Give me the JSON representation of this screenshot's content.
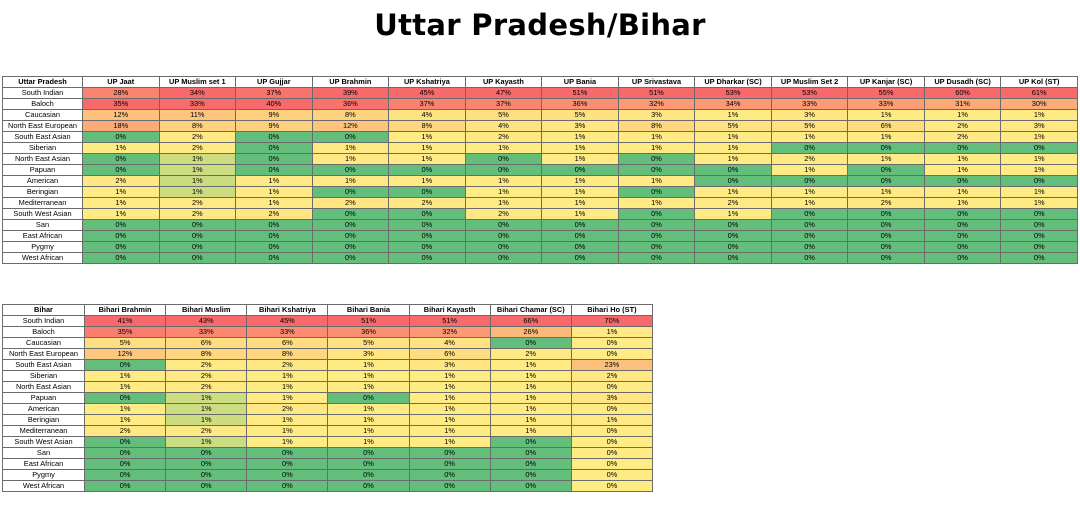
{
  "title": "Uttar Pradesh/Bihar",
  "colors": {
    "scale_low": "#63BE7B",
    "scale_mid": "#FFEB84",
    "scale_high": "#F8696B",
    "header_bg": "#FFFFFF",
    "border": "#6B6B6B"
  },
  "tables": [
    {
      "corner_label": "Uttar Pradesh",
      "columns": [
        "UP Jaat",
        "UP Muslim set 1",
        "UP Gujjar",
        "UP Brahmin",
        "UP Kshatriya",
        "UP Kayasth",
        "UP Bania",
        "UP Srivastava",
        "UP Dharkar (SC)",
        "UP Muslim Set 2",
        "UP Kanjar (SC)",
        "UP Dusadh (SC)",
        "UP Kol (ST)"
      ],
      "rows": [
        {
          "label": "South Indian",
          "values": [
            "28%",
            "34%",
            "37%",
            "39%",
            "45%",
            "47%",
            "51%",
            "51%",
            "53%",
            "53%",
            "55%",
            "60%",
            "61%"
          ]
        },
        {
          "label": "Baloch",
          "values": [
            "35%",
            "33%",
            "40%",
            "36%",
            "37%",
            "37%",
            "36%",
            "32%",
            "34%",
            "33%",
            "33%",
            "31%",
            "30%"
          ]
        },
        {
          "label": "Caucasian",
          "values": [
            "12%",
            "11%",
            "9%",
            "8%",
            "4%",
            "5%",
            "5%",
            "3%",
            "1%",
            "3%",
            "1%",
            "1%",
            "1%"
          ]
        },
        {
          "label": "North East European",
          "values": [
            "18%",
            "8%",
            "9%",
            "12%",
            "8%",
            "4%",
            "3%",
            "8%",
            "5%",
            "5%",
            "6%",
            "2%",
            "3%"
          ]
        },
        {
          "label": "South East Asian",
          "values": [
            "0%",
            "2%",
            "0%",
            "0%",
            "1%",
            "2%",
            "1%",
            "1%",
            "1%",
            "1%",
            "1%",
            "2%",
            "1%"
          ]
        },
        {
          "label": "Siberian",
          "values": [
            "1%",
            "2%",
            "0%",
            "1%",
            "1%",
            "1%",
            "1%",
            "1%",
            "1%",
            "0%",
            "0%",
            "0%",
            "0%"
          ]
        },
        {
          "label": "North East Asian",
          "values": [
            "0%",
            "1%",
            "0%",
            "1%",
            "1%",
            "0%",
            "1%",
            "0%",
            "1%",
            "2%",
            "1%",
            "1%",
            "1%"
          ]
        },
        {
          "label": "Papuan",
          "values": [
            "0%",
            "1%",
            "0%",
            "0%",
            "0%",
            "0%",
            "0%",
            "0%",
            "0%",
            "1%",
            "0%",
            "1%",
            "1%"
          ]
        },
        {
          "label": "American",
          "values": [
            "2%",
            "1%",
            "1%",
            "1%",
            "1%",
            "1%",
            "1%",
            "1%",
            "0%",
            "0%",
            "0%",
            "0%",
            "0%"
          ]
        },
        {
          "label": "Beringian",
          "values": [
            "1%",
            "1%",
            "1%",
            "0%",
            "0%",
            "1%",
            "1%",
            "0%",
            "1%",
            "1%",
            "1%",
            "1%",
            "1%"
          ]
        },
        {
          "label": "Mediterranean",
          "values": [
            "1%",
            "2%",
            "1%",
            "2%",
            "2%",
            "1%",
            "1%",
            "1%",
            "2%",
            "1%",
            "2%",
            "1%",
            "1%"
          ]
        },
        {
          "label": "South West Asian",
          "values": [
            "1%",
            "2%",
            "2%",
            "0%",
            "0%",
            "2%",
            "1%",
            "0%",
            "1%",
            "0%",
            "0%",
            "0%",
            "0%"
          ]
        },
        {
          "label": "San",
          "values": [
            "0%",
            "0%",
            "0%",
            "0%",
            "0%",
            "0%",
            "0%",
            "0%",
            "0%",
            "0%",
            "0%",
            "0%",
            "0%"
          ]
        },
        {
          "label": "East African",
          "values": [
            "0%",
            "0%",
            "0%",
            "0%",
            "0%",
            "0%",
            "0%",
            "0%",
            "0%",
            "0%",
            "0%",
            "0%",
            "0%"
          ]
        },
        {
          "label": "Pygmy",
          "values": [
            "0%",
            "0%",
            "0%",
            "0%",
            "0%",
            "0%",
            "0%",
            "0%",
            "0%",
            "0%",
            "0%",
            "0%",
            "0%"
          ]
        },
        {
          "label": "West African",
          "values": [
            "0%",
            "0%",
            "0%",
            "0%",
            "0%",
            "0%",
            "0%",
            "0%",
            "0%",
            "0%",
            "0%",
            "0%",
            "0%"
          ]
        }
      ]
    },
    {
      "corner_label": "Bihar",
      "columns": [
        "Bihari Brahmin",
        "Bihari Muslim",
        "Bihari Kshatriya",
        "Bihari Bania",
        "Bihari Kayasth",
        "Bihari Chamar (SC)",
        "Bihari Ho (ST)"
      ],
      "rows": [
        {
          "label": "South Indian",
          "values": [
            "41%",
            "43%",
            "45%",
            "51%",
            "51%",
            "66%",
            "70%"
          ]
        },
        {
          "label": "Baloch",
          "values": [
            "35%",
            "33%",
            "33%",
            "36%",
            "32%",
            "26%",
            "1%"
          ]
        },
        {
          "label": "Caucasian",
          "values": [
            "5%",
            "6%",
            "6%",
            "5%",
            "4%",
            "0%",
            "0%"
          ]
        },
        {
          "label": "North East European",
          "values": [
            "12%",
            "8%",
            "8%",
            "3%",
            "6%",
            "2%",
            "0%"
          ]
        },
        {
          "label": "South East Asian",
          "values": [
            "0%",
            "2%",
            "2%",
            "1%",
            "3%",
            "1%",
            "23%"
          ]
        },
        {
          "label": "Siberian",
          "values": [
            "1%",
            "2%",
            "1%",
            "1%",
            "1%",
            "1%",
            "2%"
          ]
        },
        {
          "label": "North East Asian",
          "values": [
            "1%",
            "2%",
            "1%",
            "1%",
            "1%",
            "1%",
            "0%"
          ]
        },
        {
          "label": "Papuan",
          "values": [
            "0%",
            "1%",
            "1%",
            "0%",
            "1%",
            "1%",
            "3%"
          ]
        },
        {
          "label": "American",
          "values": [
            "1%",
            "1%",
            "2%",
            "1%",
            "1%",
            "1%",
            "0%"
          ]
        },
        {
          "label": "Beringian",
          "values": [
            "1%",
            "1%",
            "1%",
            "1%",
            "1%",
            "1%",
            "1%"
          ]
        },
        {
          "label": "Mediterranean",
          "values": [
            "2%",
            "2%",
            "1%",
            "1%",
            "1%",
            "1%",
            "0%"
          ]
        },
        {
          "label": "South West Asian",
          "values": [
            "0%",
            "1%",
            "1%",
            "1%",
            "1%",
            "0%",
            "0%"
          ]
        },
        {
          "label": "San",
          "values": [
            "0%",
            "0%",
            "0%",
            "0%",
            "0%",
            "0%",
            "0%"
          ]
        },
        {
          "label": "East African",
          "values": [
            "0%",
            "0%",
            "0%",
            "0%",
            "0%",
            "0%",
            "0%"
          ]
        },
        {
          "label": "Pygmy",
          "values": [
            "0%",
            "0%",
            "0%",
            "0%",
            "0%",
            "0%",
            "0%"
          ]
        },
        {
          "label": "West African",
          "values": [
            "0%",
            "0%",
            "0%",
            "0%",
            "0%",
            "0%",
            "0%"
          ]
        }
      ]
    }
  ]
}
